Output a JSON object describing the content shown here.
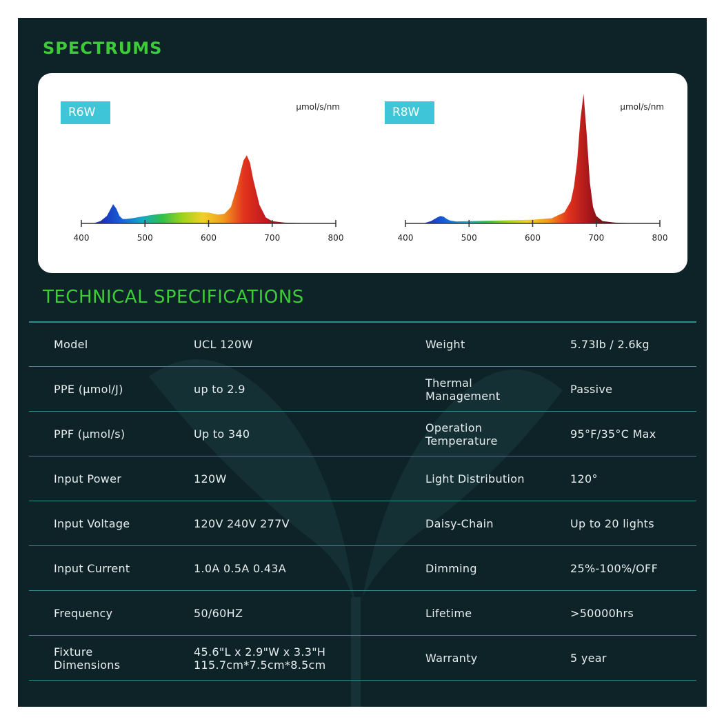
{
  "headings": {
    "spectrums": "SPECTRUMS",
    "tech": "TECHNICAL SPECIFICATIONS"
  },
  "chart_data": [
    {
      "type": "area",
      "title": "R6W",
      "ylabel": "μmol/s/nm",
      "xlim": [
        400,
        800
      ],
      "xticks": [
        400,
        500,
        600,
        700,
        800
      ],
      "series": [
        {
          "x": [
            400,
            420,
            430,
            440,
            445,
            450,
            455,
            460,
            465,
            470,
            480,
            490,
            500,
            520,
            540,
            560,
            580,
            600,
            615,
            625,
            635,
            645,
            650,
            655,
            660,
            665,
            670,
            680,
            690,
            700,
            720,
            760,
            800
          ],
          "y": [
            0,
            0.5,
            3,
            10,
            18,
            26,
            20,
            10,
            6,
            6,
            7,
            8.5,
            10,
            12.5,
            14,
            15,
            15.5,
            14.5,
            12,
            13,
            22,
            50,
            68,
            85,
            92,
            82,
            60,
            25,
            8,
            3,
            1,
            0.2,
            0
          ]
        }
      ],
      "color_stops": [
        "#1b2db3",
        "#1560d6",
        "#15a7c9",
        "#2fbf48",
        "#9ed21e",
        "#f0d02a",
        "#f29a1e",
        "#e2331d",
        "#c21a1e",
        "#8c1414"
      ]
    },
    {
      "type": "area",
      "title": "R8W",
      "ylabel": "μmol/s/nm",
      "xlim": [
        400,
        800
      ],
      "xticks": [
        400,
        500,
        600,
        700,
        800
      ],
      "series": [
        {
          "x": [
            400,
            430,
            440,
            450,
            455,
            460,
            465,
            470,
            480,
            500,
            550,
            600,
            630,
            650,
            660,
            665,
            670,
            675,
            680,
            685,
            690,
            695,
            700,
            710,
            730,
            760,
            800
          ],
          "y": [
            0,
            0.5,
            3,
            8,
            10,
            9,
            6,
            4,
            2.5,
            3,
            4,
            5,
            7,
            15,
            30,
            50,
            85,
            140,
            175,
            120,
            55,
            22,
            10,
            3,
            1,
            0.2,
            0
          ]
        }
      ],
      "color_stops": [
        "#1b2db3",
        "#1560d6",
        "#15a7c9",
        "#2fbf48",
        "#9ed21e",
        "#f0d02a",
        "#f29a1e",
        "#e2331d",
        "#a8161b",
        "#5e0f12"
      ]
    }
  ],
  "specs": [
    {
      "label": "Model",
      "value": "UCL 120W",
      "label2": "Weight",
      "value2": "5.73lb / 2.6kg"
    },
    {
      "label": "PPE (μmol/J)",
      "value": "up to 2.9",
      "label2": "Thermal\nManagement",
      "value2": "Passive"
    },
    {
      "label": "PPF (μmol/s)",
      "value": "Up to 340",
      "label2": "Operation\nTemperature",
      "value2": "95°F/35°C Max"
    },
    {
      "label": "Input Power",
      "value": "120W",
      "label2": "Light Distribution",
      "value2": "120°"
    },
    {
      "label": "Input Voltage",
      "value": "120V  240V  277V",
      "label2": "Daisy-Chain",
      "value2": "Up to 20 lights"
    },
    {
      "label": "Input Current",
      "value": "1.0A  0.5A  0.43A",
      "label2": "Dimming",
      "value2": "25%-100%/OFF"
    },
    {
      "label": "Frequency",
      "value": "50/60HZ",
      "label2": "Lifetime",
      "value2": ">50000hrs"
    },
    {
      "label": "Fixture\nDimensions",
      "value": "45.6\"L x 2.9\"W x 3.3\"H\n115.7cm*7.5cm*8.5cm",
      "label2": "Warranty",
      "value2": "5 year"
    }
  ]
}
